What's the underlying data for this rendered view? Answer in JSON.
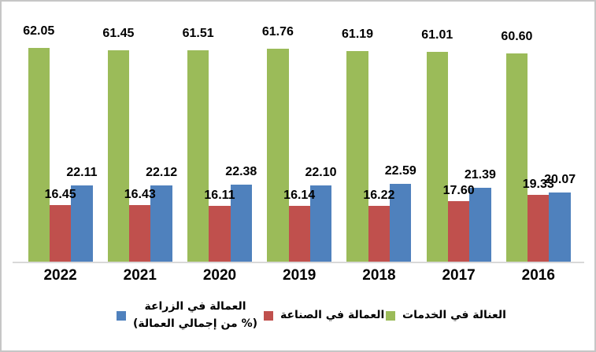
{
  "chart_data": {
    "type": "bar",
    "title": "",
    "xlabel": "",
    "ylabel": "",
    "ylim": [
      0,
      75
    ],
    "grid": false,
    "data_labels": true,
    "data_label_decimals": 2,
    "categories": [
      "2022",
      "2021",
      "2020",
      "2019",
      "2018",
      "2017",
      "2016"
    ],
    "series": [
      {
        "key": "services",
        "name": "العنالة في الخدمات",
        "color": "#9bbb59",
        "values": [
          62.05,
          61.45,
          61.51,
          61.76,
          61.19,
          61.01,
          60.6
        ]
      },
      {
        "key": "industry",
        "name": "العمالة في الصناعة",
        "color": "#c0504d",
        "values": [
          16.45,
          16.43,
          16.11,
          16.14,
          16.22,
          17.6,
          19.33
        ]
      },
      {
        "key": "agriculture",
        "name": "العمالة في الزراعة (% من إجمالي العمالة)",
        "color": "#4f81bd",
        "values": [
          22.11,
          22.12,
          22.38,
          22.1,
          22.59,
          21.39,
          20.07
        ]
      }
    ],
    "legend": {
      "position": "bottom",
      "items": [
        {
          "key": "agriculture",
          "color": "#4f81bd",
          "lines": [
            "العمالة في الزراعة",
            "(% من إجمالي العمالة)"
          ]
        },
        {
          "key": "industry",
          "color": "#c0504d",
          "lines": [
            "العمالة في الصناعة"
          ]
        },
        {
          "key": "services",
          "color": "#9bbb59",
          "lines": [
            "العنالة في الخدمات"
          ]
        }
      ]
    }
  }
}
